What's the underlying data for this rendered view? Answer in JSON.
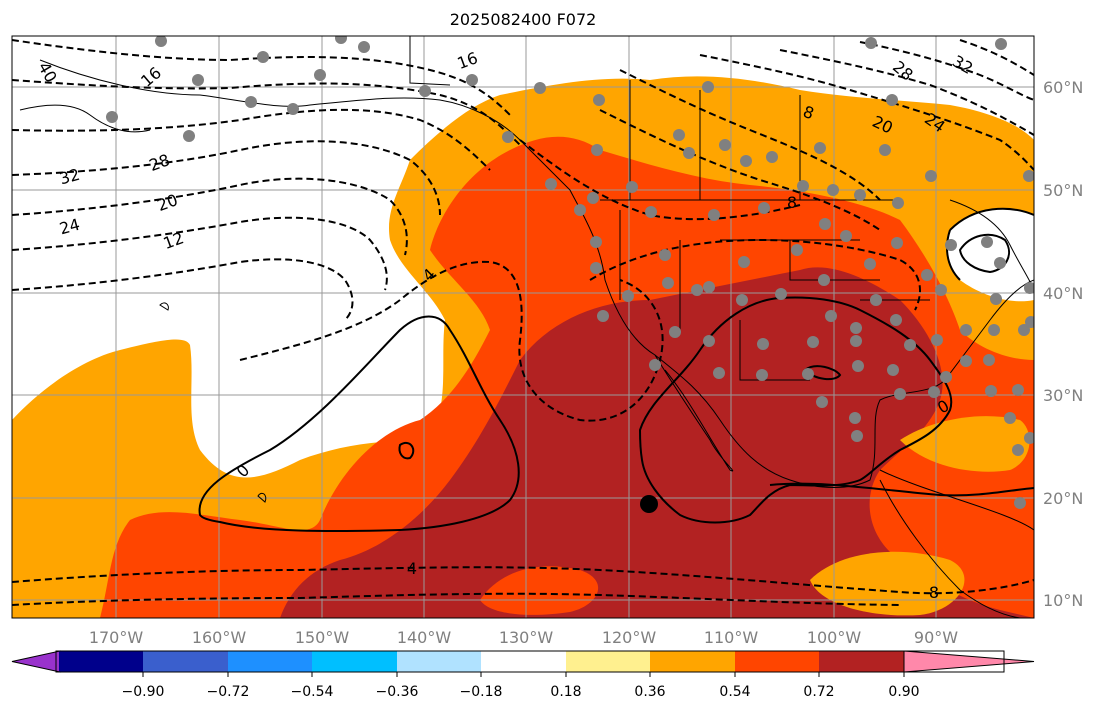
{
  "title": "2025082400 F072",
  "lon_labels": [
    "170°W",
    "160°W",
    "150°W",
    "140°W",
    "130°W",
    "120°W",
    "110°W",
    "100°W",
    "90°W"
  ],
  "lat_labels": [
    "60°N",
    "50°N",
    "40°N",
    "30°N",
    "20°N",
    "10°N"
  ],
  "colorbar": {
    "colors": [
      "#9932cc",
      "#00008b",
      "#3a5fcd",
      "#1e90ff",
      "#00bfff",
      "#b0e2ff",
      "#ffffff",
      "#fff08f",
      "#ffa500",
      "#ff4500",
      "#b22222",
      "#ff88aa"
    ],
    "tick_labels": [
      "−0.90",
      "−0.72",
      "−0.54",
      "−0.36",
      "−0.18",
      "0.18",
      "0.36",
      "0.54",
      "0.72",
      "0.90"
    ]
  },
  "contour_labels": [
    "40",
    "16",
    "16",
    "28",
    "32",
    "20",
    "24",
    "12",
    "4",
    "0",
    "0",
    "4",
    "8",
    "8",
    "32",
    "28",
    "24",
    "20",
    "8"
  ],
  "marker": "black-dot"
}
